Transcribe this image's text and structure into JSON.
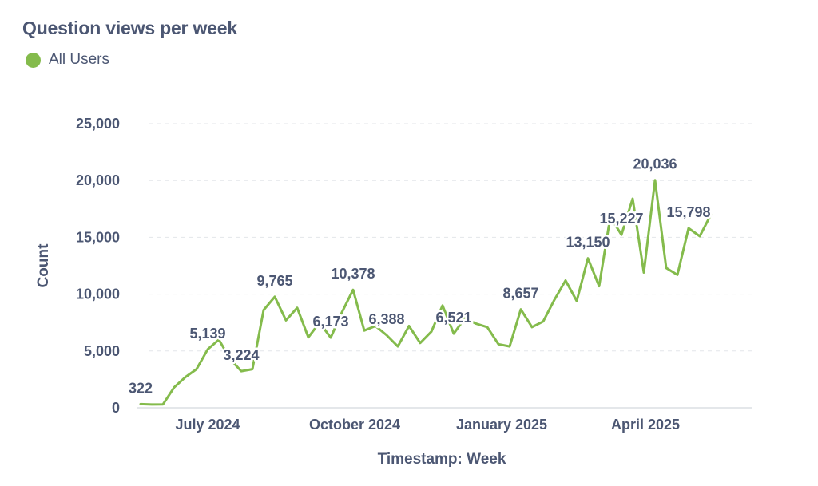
{
  "header": {
    "title": "Question views per week"
  },
  "legend": {
    "label": "All Users"
  },
  "colors": {
    "series": "#84bb4c",
    "text": "#4c5773",
    "grid": "#e3e6ea",
    "axis": "#dcdfe3"
  },
  "chart_data": {
    "type": "line",
    "title": "Question views per week",
    "xlabel": "Timestamp: Week",
    "ylabel": "Count",
    "ylim": [
      0,
      25000
    ],
    "y_ticks": [
      {
        "value": 0,
        "label": "0"
      },
      {
        "value": 5000,
        "label": "5,000"
      },
      {
        "value": 10000,
        "label": "10,000"
      },
      {
        "value": 15000,
        "label": "15,000"
      },
      {
        "value": 20000,
        "label": "20,000"
      },
      {
        "value": 25000,
        "label": "25,000"
      }
    ],
    "x_ticks": [
      {
        "date": "2024-07-01",
        "label": "July 2024"
      },
      {
        "date": "2024-10-01",
        "label": "October 2024"
      },
      {
        "date": "2025-01-01",
        "label": "January 2025"
      },
      {
        "date": "2025-04-01",
        "label": "April 2025"
      }
    ],
    "grid": true,
    "legend_position": "top-left",
    "series": [
      {
        "name": "All Users",
        "points": [
          {
            "x": "2024-05-20",
            "y": 322,
            "label": "322"
          },
          {
            "x": "2024-05-27",
            "y": 290
          },
          {
            "x": "2024-06-03",
            "y": 300
          },
          {
            "x": "2024-06-10",
            "y": 1800
          },
          {
            "x": "2024-06-17",
            "y": 2700
          },
          {
            "x": "2024-06-24",
            "y": 3400
          },
          {
            "x": "2024-07-01",
            "y": 5139,
            "label": "5,139"
          },
          {
            "x": "2024-07-08",
            "y": 6000
          },
          {
            "x": "2024-07-15",
            "y": 4300
          },
          {
            "x": "2024-07-22",
            "y": 3224,
            "label": "3,224"
          },
          {
            "x": "2024-07-29",
            "y": 3400
          },
          {
            "x": "2024-08-05",
            "y": 8600
          },
          {
            "x": "2024-08-12",
            "y": 9765,
            "label": "9,765"
          },
          {
            "x": "2024-08-19",
            "y": 7700
          },
          {
            "x": "2024-08-26",
            "y": 8800
          },
          {
            "x": "2024-09-02",
            "y": 6200
          },
          {
            "x": "2024-09-09",
            "y": 7500
          },
          {
            "x": "2024-09-16",
            "y": 6173,
            "label": "6,173"
          },
          {
            "x": "2024-09-23",
            "y": 8400
          },
          {
            "x": "2024-09-30",
            "y": 10378,
            "label": "10,378"
          },
          {
            "x": "2024-10-07",
            "y": 6800
          },
          {
            "x": "2024-10-14",
            "y": 7200
          },
          {
            "x": "2024-10-21",
            "y": 6388,
            "label": "6,388"
          },
          {
            "x": "2024-10-28",
            "y": 5400
          },
          {
            "x": "2024-11-04",
            "y": 7200
          },
          {
            "x": "2024-11-11",
            "y": 5700
          },
          {
            "x": "2024-11-18",
            "y": 6700
          },
          {
            "x": "2024-11-25",
            "y": 9000
          },
          {
            "x": "2024-12-02",
            "y": 6521,
            "label": "6,521"
          },
          {
            "x": "2024-12-09",
            "y": 7900
          },
          {
            "x": "2024-12-16",
            "y": 7400
          },
          {
            "x": "2024-12-23",
            "y": 7100
          },
          {
            "x": "2024-12-30",
            "y": 5600
          },
          {
            "x": "2025-01-06",
            "y": 5400
          },
          {
            "x": "2025-01-13",
            "y": 8657,
            "label": "8,657"
          },
          {
            "x": "2025-01-20",
            "y": 7100
          },
          {
            "x": "2025-01-27",
            "y": 7600
          },
          {
            "x": "2025-02-03",
            "y": 9500
          },
          {
            "x": "2025-02-10",
            "y": 11200
          },
          {
            "x": "2025-02-17",
            "y": 9400
          },
          {
            "x": "2025-02-24",
            "y": 13150,
            "label": "13,150"
          },
          {
            "x": "2025-03-03",
            "y": 10700
          },
          {
            "x": "2025-03-10",
            "y": 16800
          },
          {
            "x": "2025-03-17",
            "y": 15227,
            "label": "15,227"
          },
          {
            "x": "2025-03-24",
            "y": 18400
          },
          {
            "x": "2025-03-31",
            "y": 11900
          },
          {
            "x": "2025-04-07",
            "y": 20036,
            "label": "20,036"
          },
          {
            "x": "2025-04-14",
            "y": 12300
          },
          {
            "x": "2025-04-21",
            "y": 11700
          },
          {
            "x": "2025-04-28",
            "y": 15798,
            "label": "15,798"
          },
          {
            "x": "2025-05-05",
            "y": 15100
          },
          {
            "x": "2025-05-12",
            "y": 17000
          }
        ]
      }
    ]
  }
}
